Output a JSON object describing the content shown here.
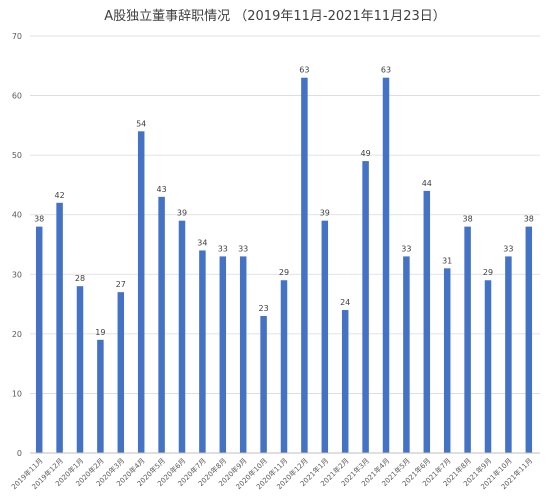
{
  "chart_data": {
    "type": "bar",
    "title": "A股独立董事辞职情况 （2019年11月-2021年11月23日）",
    "xlabel": "",
    "ylabel": "",
    "ylim": [
      0,
      70
    ],
    "yticks": [
      0,
      10,
      20,
      30,
      40,
      50,
      60,
      70
    ],
    "grid": true,
    "legend": "none",
    "bar_color": "#4472C4",
    "categories": [
      "2019年11月",
      "2019年12月",
      "2020年1月",
      "2020年2月",
      "2020年3月",
      "2020年4月",
      "2020年5月",
      "2020年6月",
      "2020年7月",
      "2020年8月",
      "2020年9月",
      "2020年10月",
      "2020年11月",
      "2020年12月",
      "2021年1月",
      "2021年2月",
      "2021年3月",
      "2021年4月",
      "2021年5月",
      "2021年6月",
      "2021年7月",
      "2021年8月",
      "2021年9月",
      "2021年10月",
      "2021年11月"
    ],
    "values": [
      38,
      42,
      28,
      19,
      27,
      54,
      43,
      39,
      34,
      33,
      33,
      23,
      29,
      63,
      39,
      24,
      49,
      63,
      33,
      44,
      31,
      38,
      29,
      33,
      38
    ]
  }
}
